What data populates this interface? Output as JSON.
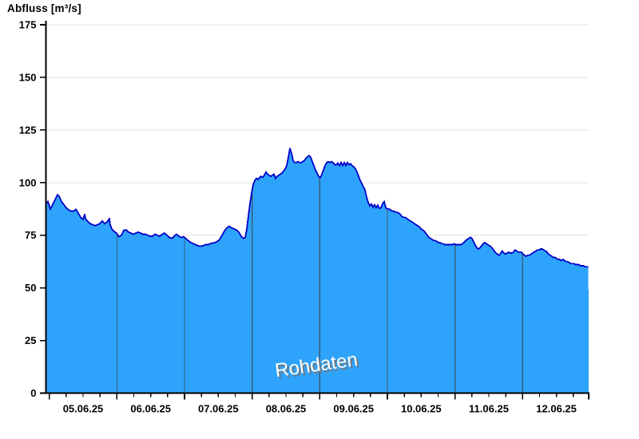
{
  "chart_data": {
    "type": "area",
    "title": "Abfluss [m³/s]",
    "ylabel": "Abfluss [m³/s]",
    "xlabel": "",
    "ylim": [
      0,
      175
    ],
    "y_ticks": [
      0,
      25,
      50,
      75,
      100,
      125,
      150,
      175
    ],
    "x_tick_labels": [
      "05.06.25",
      "06.06.25",
      "07.06.25",
      "08.06.25",
      "09.06.25",
      "10.06.25",
      "11.06.25",
      "12.06.25"
    ],
    "x_unit": "days since 05.06.25 00:00",
    "x_minor_tick_hours": 6,
    "grid": "horizontal",
    "legend": "none",
    "watermark": "Rohdaten",
    "colors": {
      "fill": "#2ea3fc",
      "line": "#0000c8",
      "day_line": "#3a5f78",
      "grid": "#e3e3e3",
      "axis": "#000000",
      "watermark_text": "#ffffff",
      "watermark_shadow": "#777777",
      "background": "#ffffff"
    },
    "series": [
      {
        "name": "Rohdaten",
        "unit": "m³/s",
        "points": [
          [
            -0.044,
            90
          ],
          [
            -0.02,
            91
          ],
          [
            0.015,
            87.5
          ],
          [
            0.05,
            89.5
          ],
          [
            0.086,
            92
          ],
          [
            0.122,
            94.3
          ],
          [
            0.145,
            93.5
          ],
          [
            0.181,
            91
          ],
          [
            0.216,
            89.5
          ],
          [
            0.252,
            88
          ],
          [
            0.287,
            87
          ],
          [
            0.323,
            86.5
          ],
          [
            0.358,
            86.5
          ],
          [
            0.393,
            87.3
          ],
          [
            0.429,
            85.5
          ],
          [
            0.464,
            83.5
          ],
          [
            0.5,
            82.5
          ],
          [
            0.523,
            85
          ],
          [
            0.535,
            83
          ],
          [
            0.571,
            81.5
          ],
          [
            0.606,
            80.5
          ],
          [
            0.641,
            80
          ],
          [
            0.677,
            79.5
          ],
          [
            0.712,
            80
          ],
          [
            0.748,
            80.5
          ],
          [
            0.783,
            81.8
          ],
          [
            0.819,
            80.5
          ],
          [
            0.854,
            81.3
          ],
          [
            0.889,
            82.8
          ],
          [
            0.9,
            80
          ],
          [
            0.925,
            78
          ],
          [
            0.96,
            76.8
          ],
          [
            0.996,
            76
          ],
          [
            1.031,
            74.3
          ],
          [
            1.067,
            75
          ],
          [
            1.102,
            77.3
          ],
          [
            1.138,
            77.5
          ],
          [
            1.173,
            76.5
          ],
          [
            1.208,
            76
          ],
          [
            1.244,
            75.5
          ],
          [
            1.279,
            76
          ],
          [
            1.315,
            76.5
          ],
          [
            1.35,
            76
          ],
          [
            1.386,
            75.5
          ],
          [
            1.421,
            75.5
          ],
          [
            1.456,
            75
          ],
          [
            1.492,
            74.5
          ],
          [
            1.527,
            74.5
          ],
          [
            1.563,
            75.5
          ],
          [
            1.598,
            75
          ],
          [
            1.634,
            74.5
          ],
          [
            1.669,
            75.5
          ],
          [
            1.704,
            76
          ],
          [
            1.74,
            75
          ],
          [
            1.775,
            74
          ],
          [
            1.811,
            73.5
          ],
          [
            1.846,
            74.5
          ],
          [
            1.882,
            75.5
          ],
          [
            1.917,
            74.5
          ],
          [
            1.952,
            74
          ],
          [
            1.988,
            74.3
          ],
          [
            2.023,
            73.3
          ],
          [
            2.059,
            72.3
          ],
          [
            2.094,
            71.5
          ],
          [
            2.13,
            71
          ],
          [
            2.165,
            70.5
          ],
          [
            2.2,
            70
          ],
          [
            2.236,
            69.8
          ],
          [
            2.271,
            70
          ],
          [
            2.307,
            70.5
          ],
          [
            2.342,
            70.5
          ],
          [
            2.378,
            71
          ],
          [
            2.413,
            71.3
          ],
          [
            2.448,
            71.5
          ],
          [
            2.484,
            72
          ],
          [
            2.519,
            73
          ],
          [
            2.555,
            75
          ],
          [
            2.59,
            77
          ],
          [
            2.626,
            78.5
          ],
          [
            2.661,
            79.3
          ],
          [
            2.696,
            78.5
          ],
          [
            2.732,
            78
          ],
          [
            2.767,
            77.5
          ],
          [
            2.803,
            76.5
          ],
          [
            2.838,
            74.5
          ],
          [
            2.874,
            73.5
          ],
          [
            2.897,
            74
          ],
          [
            2.921,
            78
          ],
          [
            2.944,
            84
          ],
          [
            2.968,
            90
          ],
          [
            2.992,
            95
          ],
          [
            3.015,
            99
          ],
          [
            3.039,
            101
          ],
          [
            3.063,
            102
          ],
          [
            3.086,
            101.5
          ],
          [
            3.11,
            102.5
          ],
          [
            3.133,
            103
          ],
          [
            3.157,
            102.5
          ],
          [
            3.181,
            103.5
          ],
          [
            3.204,
            105
          ],
          [
            3.228,
            104
          ],
          [
            3.252,
            103.5
          ],
          [
            3.275,
            103
          ],
          [
            3.299,
            103.5
          ],
          [
            3.322,
            104
          ],
          [
            3.346,
            102
          ],
          [
            3.37,
            103
          ],
          [
            3.393,
            103.5
          ],
          [
            3.417,
            104
          ],
          [
            3.441,
            104.5
          ],
          [
            3.464,
            105.5
          ],
          [
            3.488,
            106.5
          ],
          [
            3.511,
            108
          ],
          [
            3.535,
            112
          ],
          [
            3.559,
            116.3
          ],
          [
            3.582,
            114
          ],
          [
            3.606,
            110.5
          ],
          [
            3.63,
            109.5
          ],
          [
            3.653,
            109.5
          ],
          [
            3.677,
            110
          ],
          [
            3.7,
            109.5
          ],
          [
            3.724,
            109.5
          ],
          [
            3.748,
            110
          ],
          [
            3.771,
            110.5
          ],
          [
            3.795,
            111.5
          ],
          [
            3.819,
            112.3
          ],
          [
            3.842,
            112.8
          ],
          [
            3.866,
            112
          ],
          [
            3.889,
            110
          ],
          [
            3.913,
            108
          ],
          [
            3.937,
            106
          ],
          [
            3.96,
            104.5
          ],
          [
            3.984,
            103
          ],
          [
            4.008,
            102.3
          ],
          [
            4.031,
            104
          ],
          [
            4.055,
            106
          ],
          [
            4.078,
            108
          ],
          [
            4.102,
            109.5
          ],
          [
            4.126,
            110
          ],
          [
            4.149,
            109.5
          ],
          [
            4.173,
            110
          ],
          [
            4.197,
            109.5
          ],
          [
            4.22,
            108.5
          ],
          [
            4.244,
            108.5
          ],
          [
            4.267,
            109.3
          ],
          [
            4.291,
            108
          ],
          [
            4.315,
            109.5
          ],
          [
            4.338,
            108
          ],
          [
            4.362,
            109.5
          ],
          [
            4.386,
            108
          ],
          [
            4.409,
            109.5
          ],
          [
            4.433,
            108.5
          ],
          [
            4.456,
            109
          ],
          [
            4.48,
            108
          ],
          [
            4.504,
            107.5
          ],
          [
            4.527,
            106.5
          ],
          [
            4.551,
            105
          ],
          [
            4.575,
            103
          ],
          [
            4.598,
            101
          ],
          [
            4.622,
            99.5
          ],
          [
            4.645,
            98
          ],
          [
            4.669,
            96.5
          ],
          [
            4.693,
            93
          ],
          [
            4.716,
            90.5
          ],
          [
            4.74,
            89
          ],
          [
            4.764,
            89.8
          ],
          [
            4.787,
            88.3
          ],
          [
            4.811,
            89.5
          ],
          [
            4.834,
            88
          ],
          [
            4.858,
            89.3
          ],
          [
            4.882,
            87.8
          ],
          [
            4.905,
            88
          ],
          [
            4.929,
            90
          ],
          [
            4.953,
            91
          ],
          [
            4.976,
            88
          ],
          [
            5.0,
            87.5
          ],
          [
            5.024,
            87.5
          ],
          [
            5.047,
            87
          ],
          [
            5.071,
            86.5
          ],
          [
            5.094,
            86.5
          ],
          [
            5.118,
            86
          ],
          [
            5.142,
            86
          ],
          [
            5.165,
            85.5
          ],
          [
            5.189,
            85
          ],
          [
            5.212,
            84
          ],
          [
            5.236,
            83.5
          ],
          [
            5.26,
            83.5
          ],
          [
            5.283,
            83
          ],
          [
            5.307,
            82.5
          ],
          [
            5.33,
            82
          ],
          [
            5.354,
            81.5
          ],
          [
            5.378,
            81
          ],
          [
            5.401,
            80.5
          ],
          [
            5.425,
            80
          ],
          [
            5.448,
            79.5
          ],
          [
            5.472,
            79
          ],
          [
            5.496,
            78
          ],
          [
            5.519,
            77.5
          ],
          [
            5.543,
            77
          ],
          [
            5.566,
            76
          ],
          [
            5.59,
            75
          ],
          [
            5.614,
            74
          ],
          [
            5.637,
            73.5
          ],
          [
            5.661,
            73
          ],
          [
            5.684,
            72.5
          ],
          [
            5.708,
            72.5
          ],
          [
            5.732,
            72
          ],
          [
            5.755,
            71.5
          ],
          [
            5.779,
            71.5
          ],
          [
            5.802,
            71
          ],
          [
            5.826,
            71
          ],
          [
            5.85,
            70.5
          ],
          [
            5.873,
            70.5
          ],
          [
            5.897,
            70.5
          ],
          [
            5.92,
            70.5
          ],
          [
            5.944,
            70.5
          ],
          [
            5.968,
            70.5
          ],
          [
            5.991,
            71
          ],
          [
            6.015,
            70.5
          ],
          [
            6.038,
            70.5
          ],
          [
            6.062,
            70.5
          ],
          [
            6.086,
            70.5
          ],
          [
            6.109,
            71
          ],
          [
            6.133,
            71.5
          ],
          [
            6.156,
            72.5
          ],
          [
            6.18,
            73
          ],
          [
            6.204,
            73.5
          ],
          [
            6.227,
            74
          ],
          [
            6.251,
            73.5
          ],
          [
            6.274,
            72
          ],
          [
            6.298,
            70.5
          ],
          [
            6.322,
            69
          ],
          [
            6.345,
            68.5
          ],
          [
            6.369,
            69
          ],
          [
            6.392,
            70
          ],
          [
            6.416,
            71
          ],
          [
            6.44,
            71.5
          ],
          [
            6.463,
            71
          ],
          [
            6.487,
            70.5
          ],
          [
            6.51,
            70
          ],
          [
            6.534,
            69.5
          ],
          [
            6.558,
            68.5
          ],
          [
            6.581,
            67.5
          ],
          [
            6.605,
            66.5
          ],
          [
            6.628,
            66
          ],
          [
            6.652,
            65.5
          ],
          [
            6.676,
            66.5
          ],
          [
            6.699,
            67.5
          ],
          [
            6.723,
            66.5
          ],
          [
            6.746,
            66
          ],
          [
            6.77,
            66.5
          ],
          [
            6.794,
            67
          ],
          [
            6.817,
            66.5
          ],
          [
            6.841,
            66.5
          ],
          [
            6.864,
            67
          ],
          [
            6.888,
            68
          ],
          [
            6.912,
            67.5
          ],
          [
            6.935,
            67
          ],
          [
            6.959,
            67
          ],
          [
            6.982,
            67
          ],
          [
            7.006,
            66
          ],
          [
            7.029,
            65.5
          ],
          [
            7.053,
            65
          ],
          [
            7.077,
            65.5
          ],
          [
            7.1,
            65.5
          ],
          [
            7.124,
            66
          ],
          [
            7.147,
            66.5
          ],
          [
            7.171,
            67
          ],
          [
            7.195,
            67.5
          ],
          [
            7.218,
            68
          ],
          [
            7.242,
            68
          ],
          [
            7.265,
            68.5
          ],
          [
            7.289,
            68.5
          ],
          [
            7.313,
            68
          ],
          [
            7.336,
            67.5
          ],
          [
            7.36,
            67
          ],
          [
            7.383,
            66
          ],
          [
            7.407,
            65.5
          ],
          [
            7.431,
            65
          ],
          [
            7.454,
            64.5
          ],
          [
            7.478,
            64.5
          ],
          [
            7.501,
            64
          ],
          [
            7.525,
            63.5
          ],
          [
            7.549,
            63.5
          ],
          [
            7.572,
            63
          ],
          [
            7.596,
            63.5
          ],
          [
            7.619,
            63
          ],
          [
            7.643,
            62.5
          ],
          [
            7.667,
            62.5
          ],
          [
            7.69,
            62
          ],
          [
            7.714,
            61.5
          ],
          [
            7.737,
            61.5
          ],
          [
            7.761,
            61.5
          ],
          [
            7.784,
            61
          ],
          [
            7.808,
            61
          ],
          [
            7.832,
            61
          ],
          [
            7.855,
            60.5
          ],
          [
            7.879,
            60.5
          ],
          [
            7.902,
            60.5
          ],
          [
            7.926,
            60
          ],
          [
            7.95,
            60
          ],
          [
            7.973,
            60
          ]
        ]
      }
    ]
  }
}
